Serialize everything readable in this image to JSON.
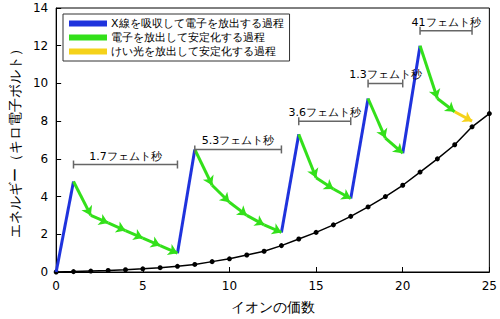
{
  "chart_data": {
    "type": "line",
    "x_label": "イオンの価数",
    "y_label": "エネルギー（キロ電子ボルト）",
    "xlim": [
      0,
      25
    ],
    "ylim": [
      0,
      14
    ],
    "xticks": [
      0,
      5,
      10,
      15,
      20,
      25
    ],
    "yticks": [
      0,
      2,
      4,
      6,
      8,
      10,
      12,
      14
    ],
    "grid": false,
    "legend": "upper left",
    "series": [
      {
        "type": "line",
        "color": "#000000",
        "marker": "circle",
        "x": [
          0,
          1,
          2,
          3,
          4,
          5,
          6,
          7,
          8,
          9,
          10,
          11,
          12,
          13,
          14,
          15,
          16,
          17,
          18,
          19,
          20,
          21,
          22,
          23,
          24,
          25
        ],
        "values": [
          0,
          0.02,
          0.05,
          0.08,
          0.12,
          0.17,
          0.23,
          0.3,
          0.4,
          0.55,
          0.7,
          0.9,
          1.1,
          1.4,
          1.75,
          2.1,
          2.5,
          2.95,
          3.45,
          4.0,
          4.6,
          5.3,
          6.0,
          6.75,
          7.7,
          8.4
        ]
      },
      {
        "name": "X線を吸収して電子を放出する過程",
        "type": "segments",
        "color": "#1f33dd",
        "segments": [
          [
            [
              0,
              0
            ],
            [
              1,
              4.8
            ]
          ],
          [
            [
              7,
              1.0
            ],
            [
              8,
              6.5
            ]
          ],
          [
            [
              13,
              2.1
            ],
            [
              14,
              7.3
            ]
          ],
          [
            [
              17,
              3.9
            ],
            [
              18,
              9.2
            ]
          ],
          [
            [
              20,
              6.3
            ],
            [
              21,
              12.0
            ]
          ]
        ]
      },
      {
        "name": "電子を放出して安定化する過程",
        "type": "arrows",
        "color": "#33e01a",
        "segments": [
          [
            [
              1,
              4.8
            ],
            [
              2,
              3.0
            ],
            [
              3,
              2.6
            ],
            [
              4,
              2.2
            ],
            [
              5,
              1.8
            ],
            [
              6,
              1.4
            ],
            [
              7,
              1.0
            ]
          ],
          [
            [
              8,
              6.5
            ],
            [
              9,
              4.6
            ],
            [
              10,
              3.7
            ],
            [
              11,
              3.0
            ],
            [
              12,
              2.5
            ],
            [
              13,
              2.1
            ]
          ],
          [
            [
              14,
              7.3
            ],
            [
              15,
              5.0
            ],
            [
              16,
              4.4
            ],
            [
              17,
              3.9
            ]
          ],
          [
            [
              18,
              9.2
            ],
            [
              19,
              7.1
            ],
            [
              20,
              6.3
            ]
          ],
          [
            [
              21,
              12.0
            ],
            [
              22,
              9.2
            ],
            [
              23,
              8.5
            ]
          ]
        ]
      },
      {
        "name": "けい光を放出して安定化する過程",
        "type": "arrows",
        "color": "#f5d21a",
        "segments": [
          [
            [
              23,
              8.5
            ],
            [
              24,
              8.0
            ]
          ]
        ]
      }
    ],
    "annotations": [
      {
        "text": "1.7フェムト秒",
        "x_start": 1,
        "x_end": 7,
        "y": 5.7
      },
      {
        "text": "5.3フェムト秒",
        "x_start": 8,
        "x_end": 13,
        "y": 6.5
      },
      {
        "text": "3.6フェムト秒",
        "x_start": 14,
        "x_end": 17,
        "y": 8.0
      },
      {
        "text": "1.3フェムト秒",
        "x_start": 18,
        "x_end": 20,
        "y": 10.0
      },
      {
        "text": "41フェムト秒",
        "x_start": 21,
        "x_end": 24,
        "y": 12.8
      }
    ]
  }
}
